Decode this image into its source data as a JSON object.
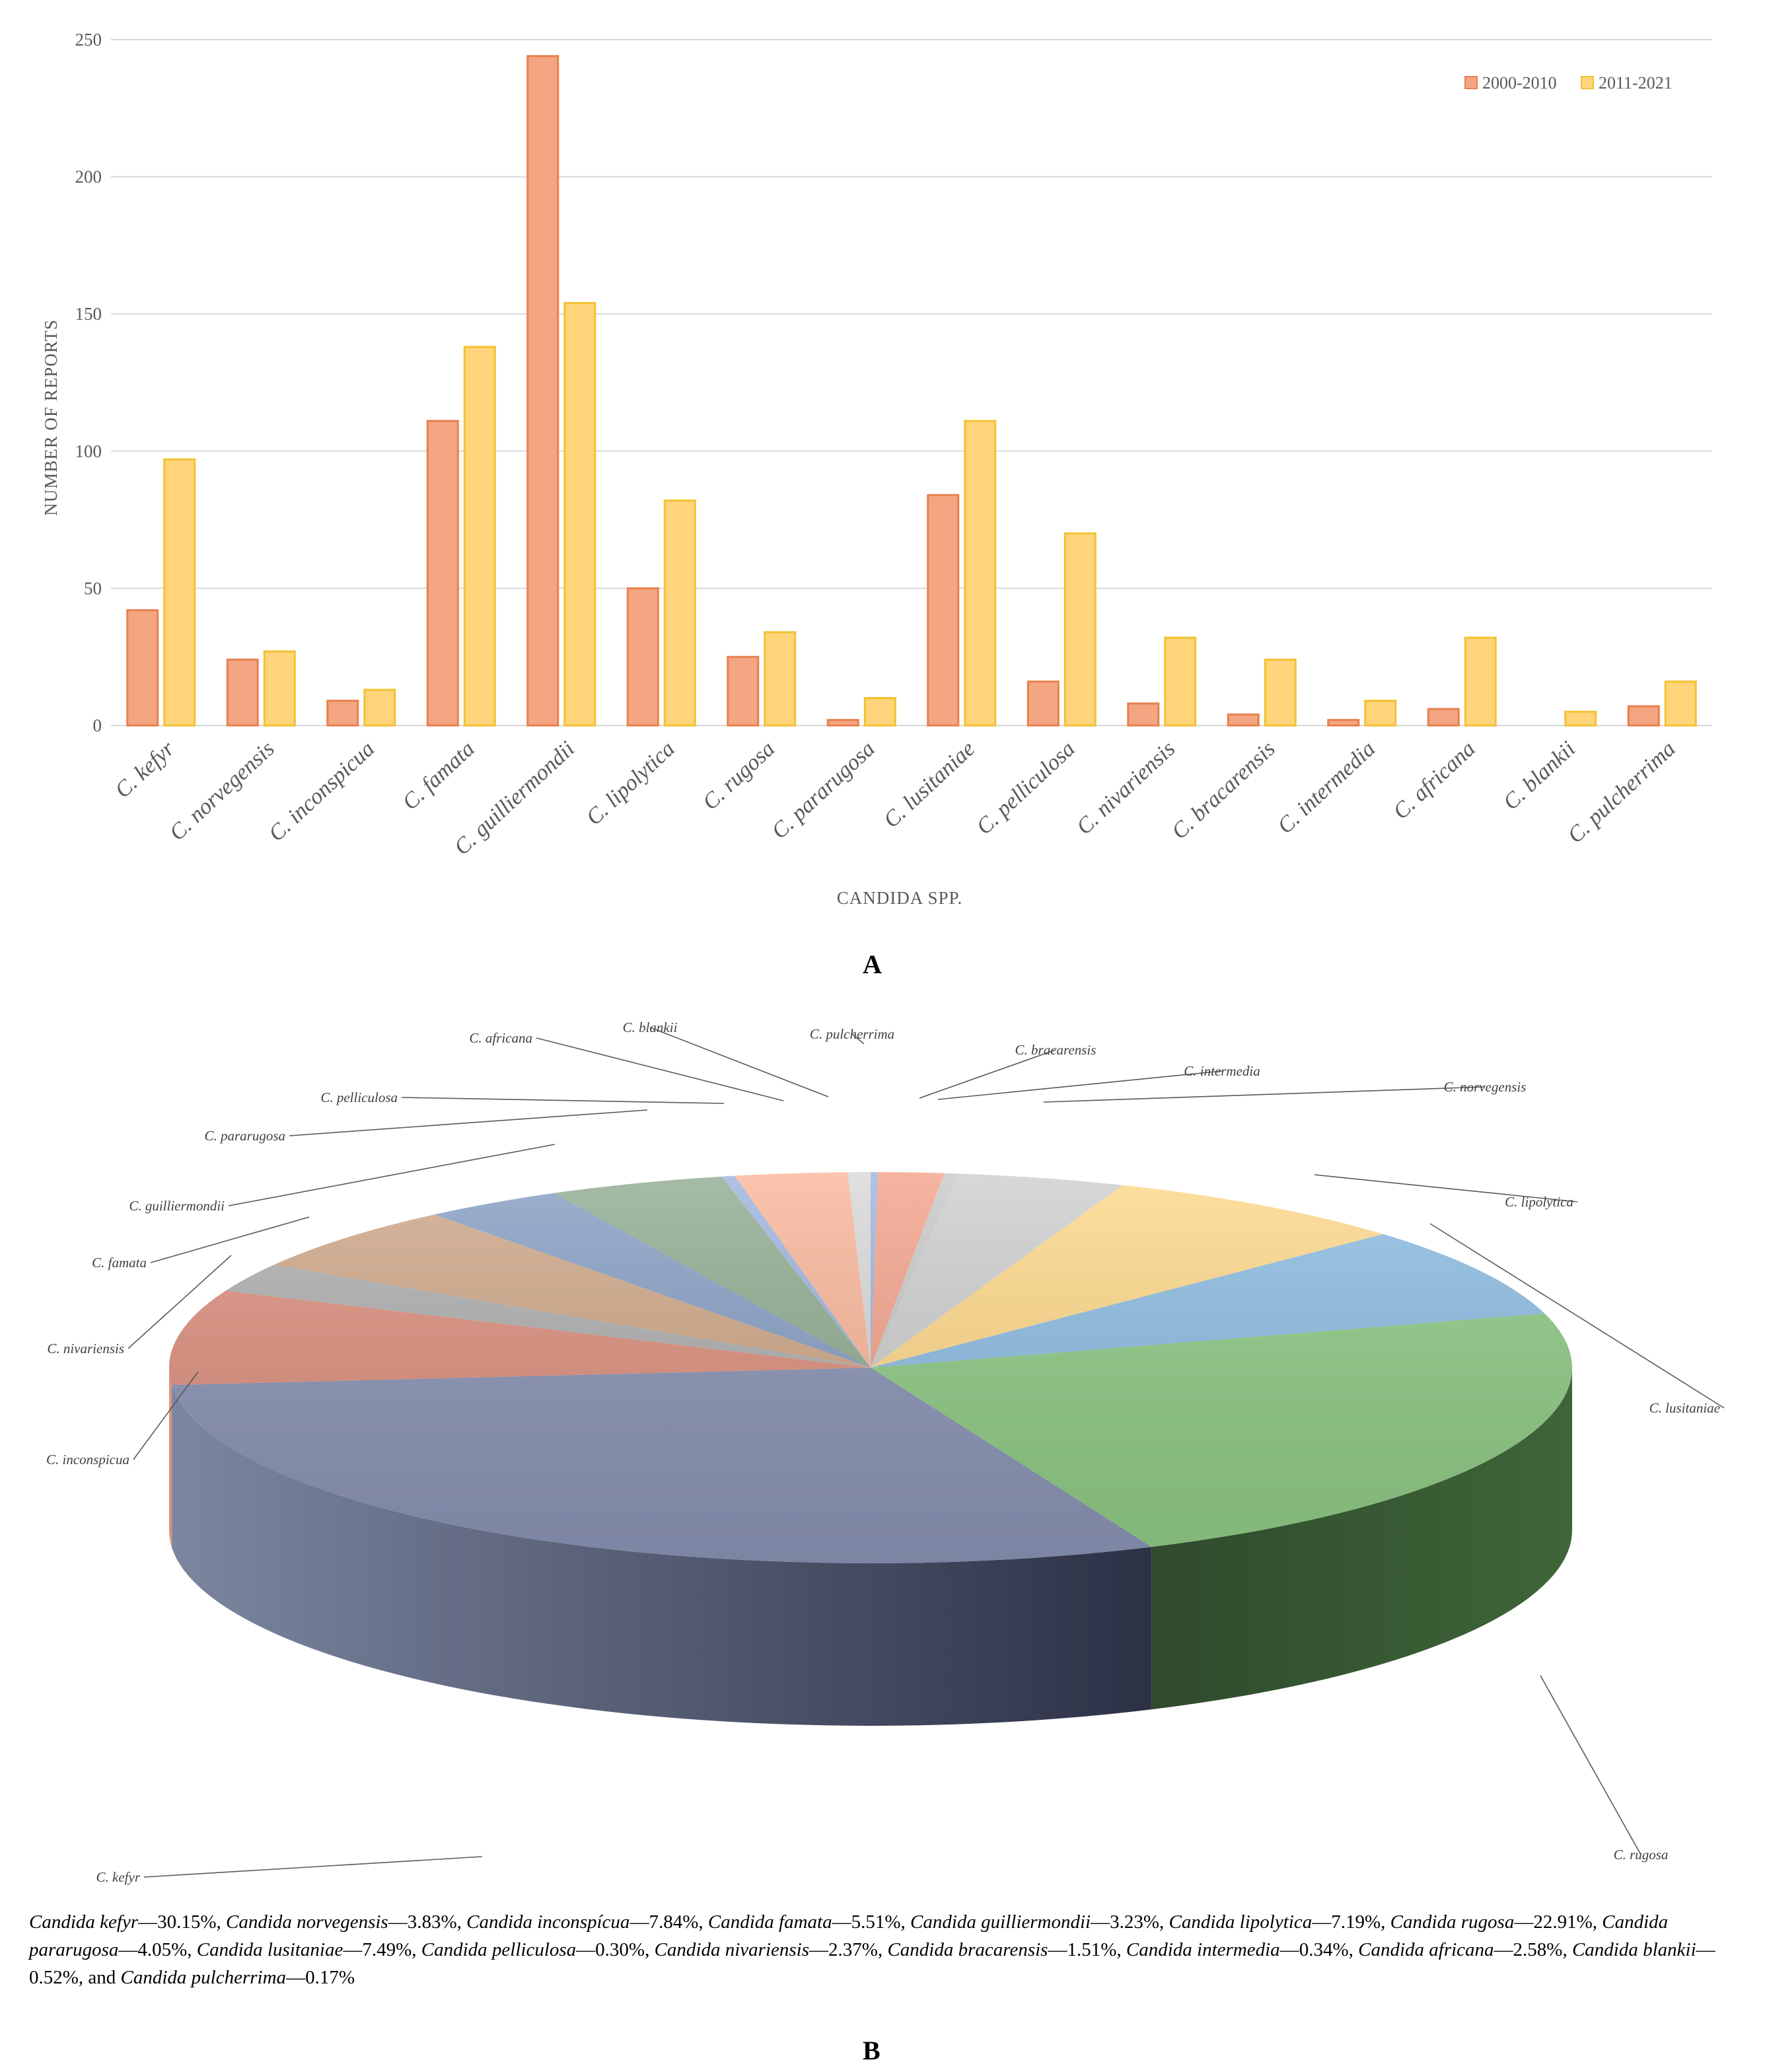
{
  "chart_data": [
    {
      "type": "bar",
      "title": "",
      "xlabel": "CANDIDA SPP.",
      "ylabel": "NUMBER OF REPORTS",
      "ylim": [
        0,
        250
      ],
      "yticks": [
        0,
        50,
        100,
        150,
        200,
        250
      ],
      "grid": true,
      "legend_position": "top-right",
      "categories": [
        "C. kefyr",
        "C. norvegensis",
        "C. inconspicua",
        "C. famata",
        "C. guilliermondii",
        "C. lipolytica",
        "C. rugosa",
        "C. pararugosa",
        "C. lusitaniae",
        "C. pelliculosa",
        "C. nivariensis",
        "C. bracarensis",
        "C. intermedia",
        "C. africana",
        "C. blankii",
        "C. pulcherrima"
      ],
      "series": [
        {
          "name": "2000-2010",
          "color": "#F4A582",
          "values": [
            42,
            24,
            9,
            111,
            244,
            50,
            25,
            2,
            84,
            16,
            8,
            4,
            2,
            6,
            0,
            7
          ]
        },
        {
          "name": "2011-2021",
          "color": "#FFD47A",
          "values": [
            97,
            27,
            13,
            138,
            154,
            82,
            34,
            10,
            111,
            70,
            32,
            24,
            9,
            32,
            5,
            16
          ]
        }
      ]
    },
    {
      "type": "pie",
      "title": "",
      "slices": [
        {
          "label": "C. pulcherrima",
          "value": 0.17,
          "color": "#9FB5DF"
        },
        {
          "label": "C. bracarensis",
          "value": 1.51,
          "color": "#F4A48C"
        },
        {
          "label": "C. intermedia",
          "value": 0.34,
          "color": "#C9C9C9"
        },
        {
          "label": "C. norvegensis",
          "value": 3.83,
          "color": "#CFCFCF"
        },
        {
          "label": "C. lipolytica",
          "value": 7.19,
          "color": "#FFD98A"
        },
        {
          "label": "C. lusitaniae",
          "value": 7.49,
          "color": "#8DBDE3"
        },
        {
          "label": "C. rugosa",
          "value": 22.91,
          "color": "#8FCB85"
        },
        {
          "label": "C. kefyr",
          "value": 30.15,
          "color": "#8A94B5"
        },
        {
          "label": "C. inconspicua",
          "value": 7.84,
          "color": "#DD907E"
        },
        {
          "label": "C. nivariensis",
          "value": 2.37,
          "color": "#AFAFAF"
        },
        {
          "label": "C. famata",
          "value": 5.51,
          "color": "#CFA889"
        },
        {
          "label": "C. guilliermondii",
          "value": 3.23,
          "color": "#87A0C4"
        },
        {
          "label": "C. pararugosa",
          "value": 4.05,
          "color": "#92AD92"
        },
        {
          "label": "C. pelliculosa",
          "value": 0.3,
          "color": "#9FB5DF"
        },
        {
          "label": "C. africana",
          "value": 2.58,
          "color": "#FBB79B"
        },
        {
          "label": "C. blankii",
          "value": 0.52,
          "color": "#D9D9D9"
        }
      ]
    }
  ],
  "panels": {
    "a": "A",
    "b": "B"
  },
  "caption": [
    {
      "t": "Candida kefyr",
      "i": true
    },
    {
      "t": "—30.15%, ",
      "i": false
    },
    {
      "t": "Candida norvegensis",
      "i": true
    },
    {
      "t": "—3.83%, ",
      "i": false
    },
    {
      "t": "Candida inconspícua",
      "i": true
    },
    {
      "t": "—7.84%, ",
      "i": false
    },
    {
      "t": "Candida famata",
      "i": true
    },
    {
      "t": "—5.51%, ",
      "i": false
    },
    {
      "t": "Candida guilliermondii",
      "i": true
    },
    {
      "t": "—3.23%, ",
      "i": false
    },
    {
      "t": "Candida lipolytica",
      "i": true
    },
    {
      "t": "—7.19%, ",
      "i": false
    },
    {
      "t": "Candida rugosa",
      "i": true
    },
    {
      "t": "—22.91%, ",
      "i": false
    },
    {
      "t": "Candida pararugosa",
      "i": true
    },
    {
      "t": "—4.05%, ",
      "i": false
    },
    {
      "t": "Candida lusitaniae",
      "i": true
    },
    {
      "t": "—7.49%, ",
      "i": false
    },
    {
      "t": "Candida pelliculosa",
      "i": true
    },
    {
      "t": "—0.30%, ",
      "i": false
    },
    {
      "t": "Candida nivariensis",
      "i": true
    },
    {
      "t": "—2.37%, ",
      "i": false
    },
    {
      "t": "Candida bracarensis",
      "i": true
    },
    {
      "t": "—1.51%, ",
      "i": false
    },
    {
      "t": "Candida intermedia",
      "i": true
    },
    {
      "t": "—0.34%, ",
      "i": false
    },
    {
      "t": "Candida africana",
      "i": true
    },
    {
      "t": "—2.58%, ",
      "i": false
    },
    {
      "t": "Candida blankii",
      "i": true
    },
    {
      "t": "—0.52%, and ",
      "i": false
    },
    {
      "t": "Candida pulcherrima",
      "i": true
    },
    {
      "t": "—0.17%",
      "i": false
    }
  ]
}
